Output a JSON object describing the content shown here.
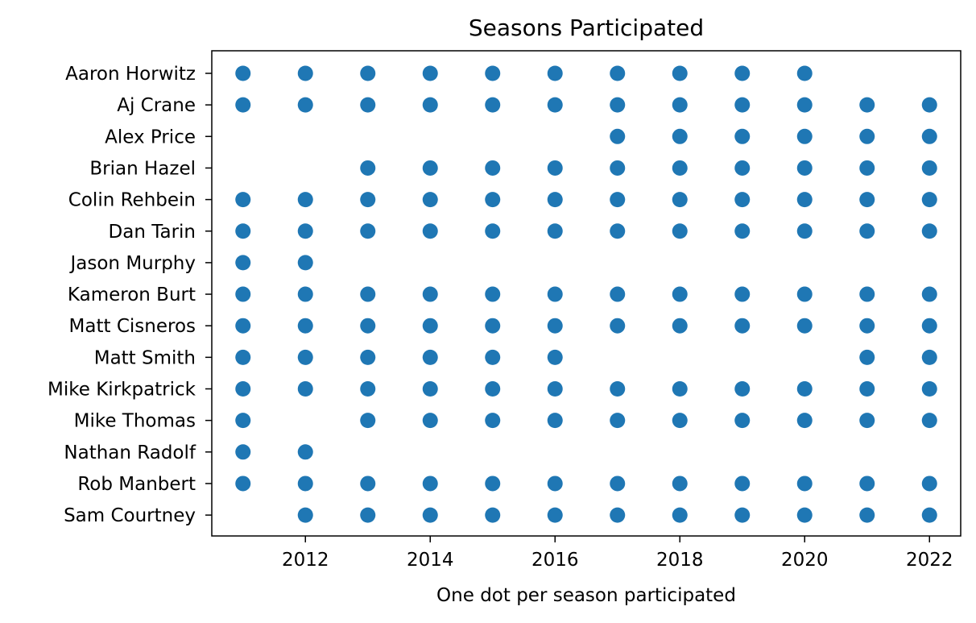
{
  "chart_data": {
    "type": "scatter",
    "title": "Seasons Participated",
    "xlabel": "One dot per season participated",
    "ylabel": "",
    "xlim": [
      2010.5,
      2022.5
    ],
    "x_ticks": [
      2012,
      2014,
      2016,
      2018,
      2020,
      2022
    ],
    "grid": false,
    "legend": "none",
    "marker_color": "#1f77b4",
    "categories": [
      "Aaron Horwitz",
      "Aj Crane",
      "Alex Price",
      "Brian Hazel",
      "Colin Rehbein",
      "Dan Tarin",
      "Jason Murphy",
      "Kameron Burt",
      "Matt Cisneros",
      "Matt Smith",
      "Mike Kirkpatrick",
      "Mike Thomas",
      "Nathan Radolf",
      "Rob Manbert",
      "Sam Courtney"
    ],
    "participants": [
      {
        "name": "Aaron Horwitz",
        "seasons": [
          2011,
          2012,
          2013,
          2014,
          2015,
          2016,
          2017,
          2018,
          2019,
          2020
        ]
      },
      {
        "name": "Aj Crane",
        "seasons": [
          2011,
          2012,
          2013,
          2014,
          2015,
          2016,
          2017,
          2018,
          2019,
          2020,
          2021,
          2022
        ]
      },
      {
        "name": "Alex Price",
        "seasons": [
          2017,
          2018,
          2019,
          2020,
          2021,
          2022
        ]
      },
      {
        "name": "Brian Hazel",
        "seasons": [
          2013,
          2014,
          2015,
          2016,
          2017,
          2018,
          2019,
          2020,
          2021,
          2022
        ]
      },
      {
        "name": "Colin Rehbein",
        "seasons": [
          2011,
          2012,
          2013,
          2014,
          2015,
          2016,
          2017,
          2018,
          2019,
          2020,
          2021,
          2022
        ]
      },
      {
        "name": "Dan Tarin",
        "seasons": [
          2011,
          2012,
          2013,
          2014,
          2015,
          2016,
          2017,
          2018,
          2019,
          2020,
          2021,
          2022
        ]
      },
      {
        "name": "Jason Murphy",
        "seasons": [
          2011,
          2012
        ]
      },
      {
        "name": "Kameron Burt",
        "seasons": [
          2011,
          2012,
          2013,
          2014,
          2015,
          2016,
          2017,
          2018,
          2019,
          2020,
          2021,
          2022
        ]
      },
      {
        "name": "Matt Cisneros",
        "seasons": [
          2011,
          2012,
          2013,
          2014,
          2015,
          2016,
          2017,
          2018,
          2019,
          2020,
          2021,
          2022
        ]
      },
      {
        "name": "Matt Smith",
        "seasons": [
          2011,
          2012,
          2013,
          2014,
          2015,
          2016,
          2021,
          2022
        ]
      },
      {
        "name": "Mike Kirkpatrick",
        "seasons": [
          2011,
          2012,
          2013,
          2014,
          2015,
          2016,
          2017,
          2018,
          2019,
          2020,
          2021,
          2022
        ]
      },
      {
        "name": "Mike Thomas",
        "seasons": [
          2011,
          2013,
          2014,
          2015,
          2016,
          2017,
          2018,
          2019,
          2020,
          2021,
          2022
        ]
      },
      {
        "name": "Nathan Radolf",
        "seasons": [
          2011,
          2012
        ]
      },
      {
        "name": "Rob Manbert",
        "seasons": [
          2011,
          2012,
          2013,
          2014,
          2015,
          2016,
          2017,
          2018,
          2019,
          2020,
          2021,
          2022
        ]
      },
      {
        "name": "Sam Courtney",
        "seasons": [
          2012,
          2013,
          2014,
          2015,
          2016,
          2017,
          2018,
          2019,
          2020,
          2021,
          2022
        ]
      }
    ]
  }
}
